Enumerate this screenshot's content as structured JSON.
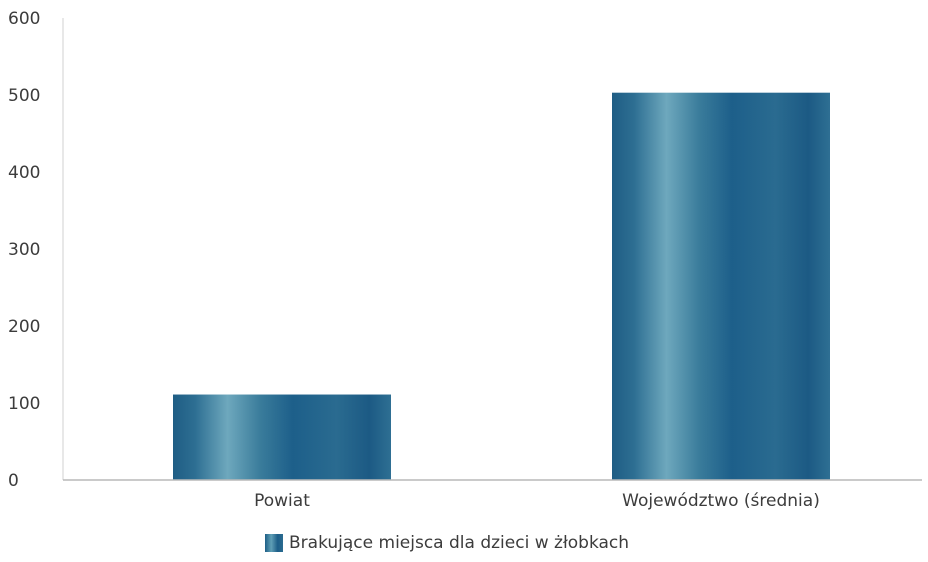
{
  "chart_data": {
    "type": "bar",
    "categories": [
      "Powiat",
      "Województwo (średnia)"
    ],
    "series": [
      {
        "name": "Brakujące miejsca dla dzieci w żłobkach",
        "values": [
          111,
          503
        ]
      }
    ],
    "yticks": [
      "0",
      "100",
      "200",
      "300",
      "400",
      "500",
      "600"
    ],
    "ylim": [
      0,
      600
    ],
    "grid": false,
    "legend_position": "bottom",
    "colors": {
      "bar_dark": "#1d5e88",
      "bar_light": "#6aa7bc",
      "axis": "#b9b9b9"
    }
  }
}
